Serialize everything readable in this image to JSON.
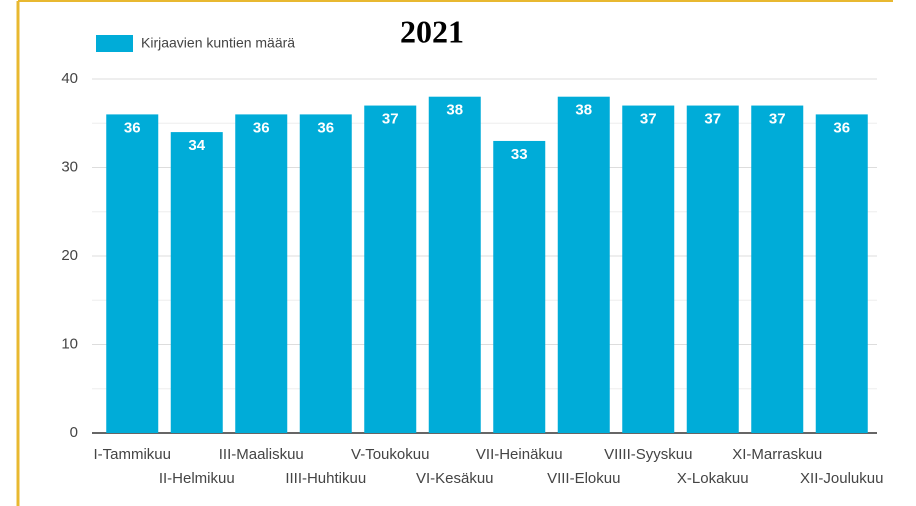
{
  "chart_data": {
    "type": "bar",
    "title": "2021",
    "legend": "Kirjaavien kuntien määrä",
    "categories": [
      "I-Tammikuu",
      "II-Helmikuu",
      "III-Maaliskuu",
      "IIII-Huhtikuu",
      "V-Toukokuu",
      "VI-Kesäkuu",
      "VII-Heinäkuu",
      "VIII-Elokuu",
      "VIIII-Syyskuu",
      "X-Lokakuu",
      "XI-Marraskuu",
      "XII-Joulukuu"
    ],
    "values": [
      36,
      34,
      36,
      36,
      37,
      38,
      33,
      38,
      37,
      37,
      37,
      36
    ],
    "color": "#00acd8",
    "ylim": [
      0,
      40
    ],
    "yticks": [
      0,
      10,
      20,
      30,
      40
    ],
    "grid": true
  }
}
